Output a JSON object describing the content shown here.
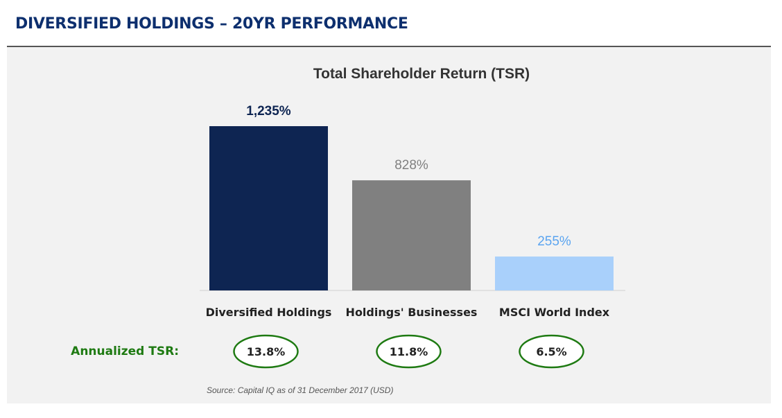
{
  "header": {
    "title": "DIVERSIFIED HOLDINGS – 20YR PERFORMANCE"
  },
  "chart_data": {
    "type": "bar",
    "title": "Total Shareholder Return (TSR)",
    "categories": [
      "Diversified Holdings",
      "Holdings' Businesses",
      "MSCI World Index"
    ],
    "values": [
      1235,
      828,
      255
    ],
    "value_labels": [
      "1,235%",
      "828%",
      "255%"
    ],
    "unit": "%",
    "ylim": [
      0,
      1235
    ],
    "grid": false,
    "bar_colors": [
      "#0e2552",
      "#808080",
      "#a9d0fb"
    ],
    "label_colors": [
      "#0e2552",
      "#808080",
      "#5aa4f0"
    ],
    "annualized": {
      "label": "Annualized TSR:",
      "values": [
        "13.8%",
        "11.8%",
        "6.5%"
      ],
      "color": "#1e7a12"
    },
    "source": "Source: Capital IQ as of 31 December 2017 (USD)"
  }
}
